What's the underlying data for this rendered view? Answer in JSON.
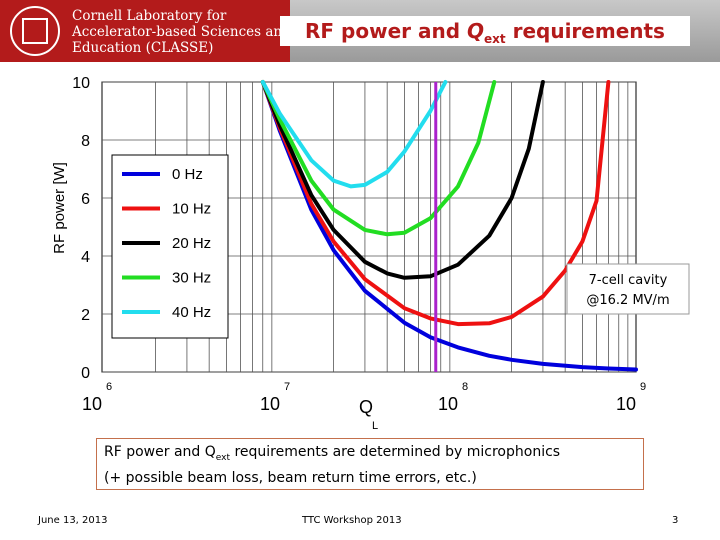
{
  "header": {
    "org_lines": [
      "Cornell Laboratory for",
      "Accelerator-based Sciences and",
      "Education (CLASSE)"
    ],
    "title_part1": "RF power and ",
    "title_q": "Q",
    "title_sub": "ext",
    "title_part2": " requirements",
    "seal_label": "Cornell University seal"
  },
  "chart_data": {
    "type": "line",
    "title": "",
    "xlabel": "Q",
    "xlabel_sub": "L",
    "ylabel": "RF power [W]",
    "x_scale": "log",
    "xlim": [
      1000000,
      1000000000
    ],
    "ylim": [
      0,
      10
    ],
    "x_ticks": [
      {
        "value": 1000000,
        "base": "10",
        "exp": "6"
      },
      {
        "value": 10000000,
        "base": "10",
        "exp": "7"
      },
      {
        "value": 100000000,
        "base": "10",
        "exp": "8"
      },
      {
        "value": 1000000000,
        "base": "10",
        "exp": "9"
      }
    ],
    "y_ticks": [
      "0",
      "2",
      "4",
      "6",
      "8",
      "10"
    ],
    "grid": true,
    "legend_position": "top-left",
    "series": [
      {
        "name": "0 Hz",
        "color": "#0000dd",
        "x": [
          8000000,
          10000000,
          15000000,
          20000000,
          30000000,
          50000000,
          70000000,
          100000000,
          150000000,
          200000000,
          300000000,
          500000000,
          700000000,
          1000000000
        ],
        "y": [
          10,
          8.3,
          5.6,
          4.2,
          2.8,
          1.7,
          1.2,
          0.85,
          0.56,
          0.42,
          0.28,
          0.17,
          0.12,
          0.085
        ]
      },
      {
        "name": "10 Hz",
        "color": "#ee1111",
        "x": [
          8000000,
          10000000,
          15000000,
          20000000,
          30000000,
          50000000,
          70000000,
          100000000,
          150000000,
          200000000,
          300000000,
          400000000,
          500000000,
          600000000,
          700000000
        ],
        "y": [
          10,
          8.4,
          5.8,
          4.5,
          3.2,
          2.2,
          1.85,
          1.65,
          1.68,
          1.9,
          2.6,
          3.5,
          4.5,
          5.9,
          10
        ]
      },
      {
        "name": "20 Hz",
        "color": "#000000",
        "x": [
          8000000,
          10000000,
          15000000,
          20000000,
          30000000,
          40000000,
          50000000,
          70000000,
          100000000,
          150000000,
          200000000,
          250000000,
          300000000
        ],
        "y": [
          10,
          8.5,
          6.1,
          4.9,
          3.8,
          3.4,
          3.25,
          3.3,
          3.7,
          4.7,
          6.0,
          7.7,
          10
        ]
      },
      {
        "name": "30 Hz",
        "color": "#22dd22",
        "x": [
          8000000,
          10000000,
          15000000,
          20000000,
          30000000,
          40000000,
          50000000,
          70000000,
          100000000,
          130000000,
          160000000
        ],
        "y": [
          10,
          8.7,
          6.6,
          5.6,
          4.9,
          4.75,
          4.8,
          5.3,
          6.4,
          7.9,
          10
        ]
      },
      {
        "name": "40 Hz",
        "color": "#22ddee",
        "x": [
          8000000,
          10000000,
          15000000,
          20000000,
          25000000,
          30000000,
          40000000,
          50000000,
          70000000,
          85000000
        ],
        "y": [
          10,
          8.9,
          7.3,
          6.6,
          6.4,
          6.45,
          6.9,
          7.6,
          9.0,
          10
        ]
      }
    ],
    "marker_line": {
      "x": 75000000,
      "color": "#aa22cc"
    },
    "annotation_lines": [
      "7-cell cavity",
      "@16.2 MV/m"
    ]
  },
  "note": {
    "line1_a": "RF power and Q",
    "line1_sub": "ext",
    "line1_b": " requirements are determined by microphonics",
    "line2": "(+ possible beam loss, beam return time errors, etc.)"
  },
  "footer": {
    "date": "June 13, 2013",
    "center": "TTC Workshop 2013",
    "page": "3"
  }
}
